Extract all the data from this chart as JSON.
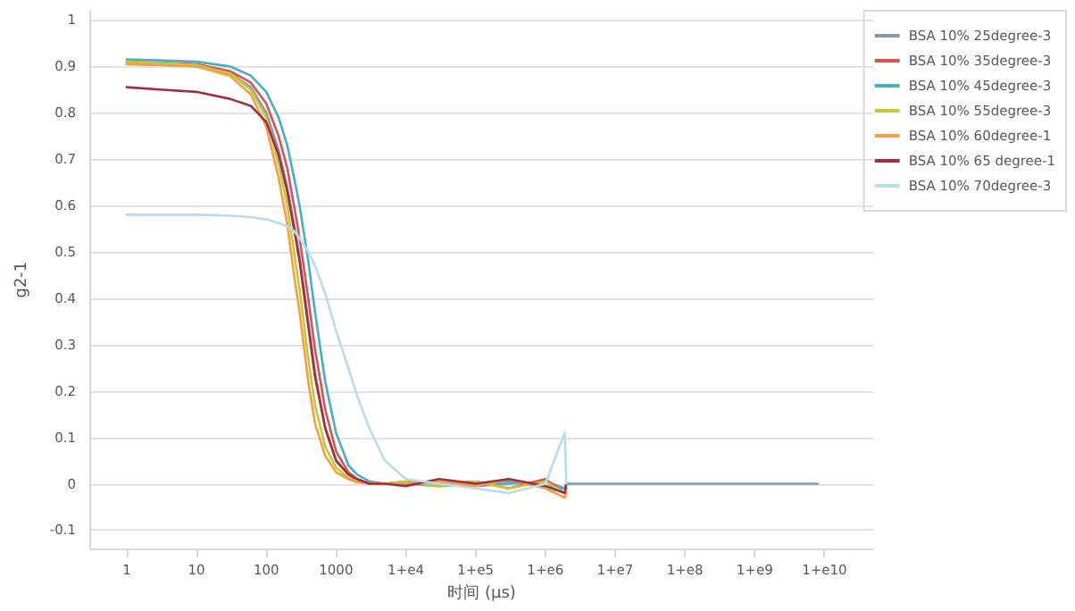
{
  "chart_data": {
    "type": "line",
    "xlabel": "时间 (μs)",
    "ylabel": "g2-1",
    "x": [
      1,
      3,
      10,
      30,
      60,
      100,
      150,
      200,
      250,
      300,
      400,
      500,
      700,
      1000,
      1500,
      2000,
      3000,
      5000,
      10000,
      30000,
      100000,
      300000,
      1000000,
      1900000,
      2000000
    ],
    "series": [
      {
        "name": "BSA 10% 25degree-3",
        "color": "#8497b0",
        "x": [
          1,
          3,
          10,
          30,
          60,
          100,
          150,
          200,
          250,
          300,
          400,
          500,
          700,
          1000,
          1500,
          2000,
          3000,
          5000,
          10000,
          30000,
          100000,
          300000,
          1000000,
          1900000,
          2000000,
          8000000000
        ],
        "values": [
          0.905,
          0.903,
          0.9,
          0.885,
          0.855,
          0.8,
          0.72,
          0.64,
          0.56,
          0.49,
          0.35,
          0.24,
          0.12,
          0.05,
          0.02,
          0.008,
          0,
          0,
          0,
          0.005,
          -0.005,
          0,
          0.005,
          -0.01,
          0,
          0
        ]
      },
      {
        "name": "BSA 10% 35degree-3",
        "color": "#d9534f",
        "values": [
          0.91,
          0.908,
          0.905,
          0.89,
          0.865,
          0.82,
          0.75,
          0.68,
          0.6,
          0.53,
          0.4,
          0.29,
          0.16,
          0.07,
          0.025,
          0.01,
          0,
          0,
          0.005,
          0,
          0.005,
          -0.01,
          0.01,
          -0.02,
          -0.01
        ]
      },
      {
        "name": "BSA 10% 45degree-3",
        "color": "#4bacc6",
        "values": [
          0.915,
          0.913,
          0.91,
          0.9,
          0.88,
          0.845,
          0.79,
          0.73,
          0.66,
          0.6,
          0.48,
          0.37,
          0.22,
          0.11,
          0.04,
          0.02,
          0.005,
          0,
          0,
          -0.005,
          0,
          0.005,
          -0.005,
          -0.01,
          0
        ]
      },
      {
        "name": "BSA 10% 55degree-3",
        "color": "#c9c832",
        "values": [
          0.91,
          0.907,
          0.903,
          0.885,
          0.85,
          0.79,
          0.69,
          0.6,
          0.5,
          0.42,
          0.27,
          0.17,
          0.08,
          0.035,
          0.012,
          0.005,
          0,
          0,
          0.005,
          -0.005,
          0.005,
          -0.01,
          0.005,
          -0.02,
          -0.01
        ]
      },
      {
        "name": "BSA 10% 60degree-1",
        "color": "#f0a04b",
        "values": [
          0.905,
          0.903,
          0.9,
          0.88,
          0.84,
          0.77,
          0.66,
          0.56,
          0.45,
          0.37,
          0.22,
          0.13,
          0.06,
          0.025,
          0.01,
          0.003,
          0,
          0,
          0,
          0.005,
          -0.005,
          0.01,
          -0.01,
          -0.03,
          -0.02
        ]
      },
      {
        "name": "BSA 10% 65 degree-1",
        "color": "#a03040",
        "values": [
          0.855,
          0.85,
          0.845,
          0.83,
          0.815,
          0.78,
          0.71,
          0.63,
          0.55,
          0.48,
          0.34,
          0.23,
          0.12,
          0.05,
          0.02,
          0.01,
          0,
          0,
          -0.005,
          0.01,
          0,
          0.01,
          -0.005,
          -0.02,
          0
        ]
      },
      {
        "name": "BSA 10% 70degree-3",
        "color": "#b7dde8",
        "values": [
          0.58,
          0.58,
          0.58,
          0.578,
          0.575,
          0.57,
          0.562,
          0.555,
          0.545,
          0.53,
          0.5,
          0.47,
          0.41,
          0.33,
          0.25,
          0.19,
          0.12,
          0.05,
          0.01,
          0,
          -0.01,
          -0.02,
          0,
          0.11,
          0
        ]
      }
    ],
    "log": "x",
    "xlim": [
      0.3,
      50000000000
    ],
    "xticks": [
      1,
      10,
      100,
      1000,
      {
        "value": 10000,
        "label": "1+e4"
      },
      {
        "value": 100000,
        "label": "1+e5"
      },
      {
        "value": 1000000,
        "label": "1+e6"
      },
      {
        "value": 10000000,
        "label": "1+e7"
      },
      {
        "value": 100000000,
        "label": "1+e8"
      },
      {
        "value": 1000000000,
        "label": "1+e9"
      },
      {
        "value": 10000000000,
        "label": "1+e10"
      }
    ],
    "ylim": [
      -0.14,
      1.02
    ],
    "yticks": [
      -0.1,
      0,
      0.1,
      0.2,
      0.3,
      0.4,
      0.5,
      0.6,
      0.7,
      0.8,
      0.9,
      1
    ],
    "grid": "y",
    "legend": "right",
    "marker": "none",
    "line_style": "solid"
  }
}
